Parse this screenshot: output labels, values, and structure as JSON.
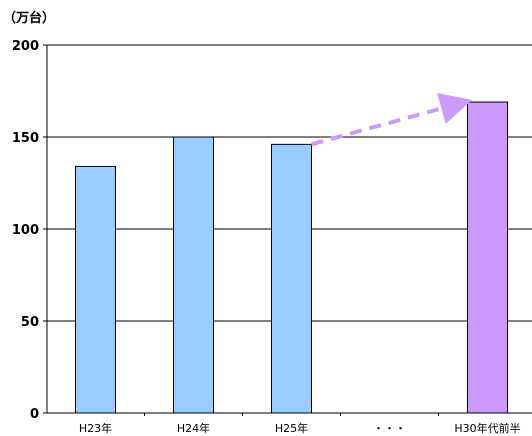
{
  "chart_data": {
    "type": "bar",
    "unit_label": "（万台）",
    "title": "",
    "xlabel": "",
    "ylabel": "",
    "categories": [
      "H23年",
      "H24年",
      "H25年",
      "・・・",
      "H30年代前半"
    ],
    "values": [
      134,
      150,
      146,
      null,
      169
    ],
    "ylim": [
      0,
      200
    ],
    "yticks": [
      0,
      50,
      100,
      150,
      200
    ],
    "grid": true,
    "legend": "none",
    "bar_colors": [
      "#99ccff",
      "#99ccff",
      "#99ccff",
      null,
      "#cc99ff"
    ],
    "arrow": {
      "from_category": "H25年",
      "to_category": "H30年代前半",
      "from_value": 146,
      "to_value": 169,
      "style": "dashed",
      "color": "#cc99ff"
    }
  }
}
